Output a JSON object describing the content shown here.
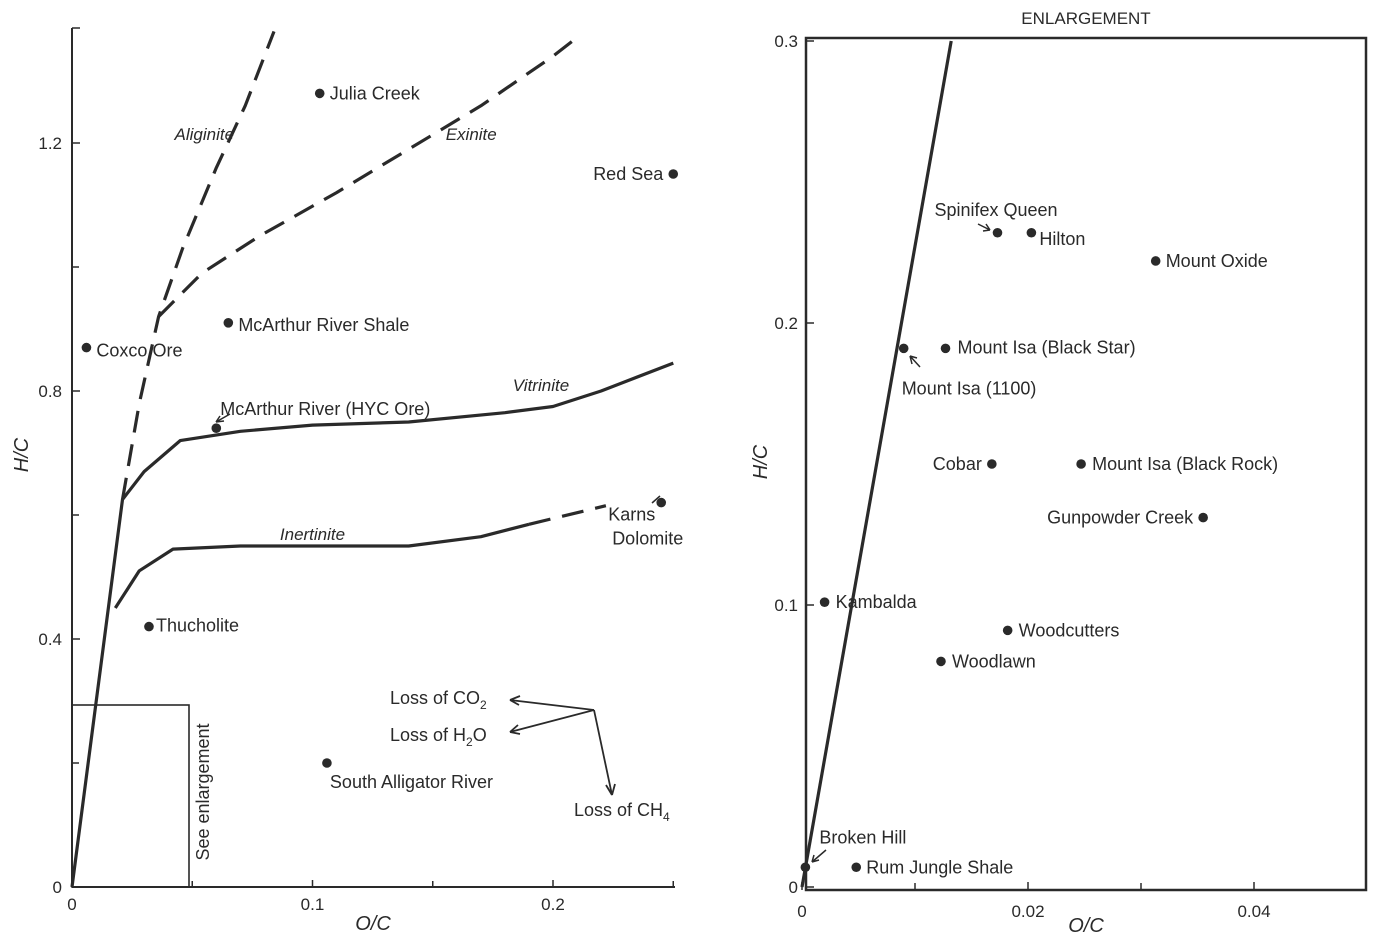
{
  "chart_data": [
    {
      "type": "scatter",
      "xlabel": "O/C",
      "ylabel": "H/C",
      "xlim": [
        0,
        0.25
      ],
      "ylim": [
        0,
        1.4
      ],
      "x_ticks": [
        {
          "value": 0,
          "label": "0"
        },
        {
          "value": 0.1,
          "label": "0.1"
        },
        {
          "value": 0.2,
          "label": "0.2"
        }
      ],
      "y_ticks": [
        {
          "value": 0,
          "label": "0"
        },
        {
          "value": 0.4,
          "label": "0.4"
        },
        {
          "value": 0.8,
          "label": "0.8"
        },
        {
          "value": 1.2,
          "label": "1.2"
        }
      ],
      "points": [
        {
          "label": "Julia Creek",
          "x": 0.103,
          "y": 1.28
        },
        {
          "label": "Red Sea",
          "x": 0.25,
          "y": 1.15
        },
        {
          "label": "McArthur River Shale",
          "x": 0.065,
          "y": 0.91
        },
        {
          "label": "Coxco Ore",
          "x": 0.006,
          "y": 0.87
        },
        {
          "label": "McArthur River (HYC Ore)",
          "x": 0.06,
          "y": 0.74
        },
        {
          "label": "Karns Dolomite",
          "x": 0.245,
          "y": 0.62
        },
        {
          "label": "Thucholite",
          "x": 0.032,
          "y": 0.42
        },
        {
          "label": "South Alligator River",
          "x": 0.106,
          "y": 0.2
        }
      ],
      "curves": [
        {
          "name": "Aliginite",
          "style": "dashed",
          "points": [
            [
              0.021,
              0.625
            ],
            [
              0.028,
              0.78
            ],
            [
              0.036,
              0.92
            ],
            [
              0.046,
              1.03
            ],
            [
              0.06,
              1.16
            ],
            [
              0.072,
              1.26
            ],
            [
              0.084,
              1.38
            ]
          ]
        },
        {
          "name": "Exinite",
          "style": "dashed",
          "points": [
            [
              0.036,
              0.92
            ],
            [
              0.054,
              0.99
            ],
            [
              0.078,
              1.05
            ],
            [
              0.11,
              1.12
            ],
            [
              0.14,
              1.19
            ],
            [
              0.17,
              1.26
            ],
            [
              0.2,
              1.34
            ],
            [
              0.21,
              1.37
            ]
          ]
        },
        {
          "name": "Vitrinite",
          "style": "solid",
          "points": [
            [
              0,
              0
            ],
            [
              0.021,
              0.625
            ],
            [
              0.03,
              0.67
            ],
            [
              0.045,
              0.72
            ],
            [
              0.07,
              0.735
            ],
            [
              0.1,
              0.745
            ],
            [
              0.14,
              0.75
            ],
            [
              0.18,
              0.765
            ],
            [
              0.2,
              0.775
            ],
            [
              0.22,
              0.8
            ],
            [
              0.25,
              0.845
            ]
          ]
        },
        {
          "name": "Inertinite",
          "style": "solid",
          "points": [
            [
              0.018,
              0.45
            ],
            [
              0.028,
              0.51
            ],
            [
              0.042,
              0.545
            ],
            [
              0.07,
              0.55
            ],
            [
              0.1,
              0.55
            ],
            [
              0.14,
              0.55
            ],
            [
              0.17,
              0.565
            ],
            [
              0.19,
              0.585
            ]
          ]
        },
        {
          "name": "Inertinite-extension",
          "style": "dashed",
          "points": [
            [
              0.19,
              0.585
            ],
            [
              0.222,
              0.615
            ]
          ]
        }
      ],
      "curve_labels": [
        {
          "text": "Aliginite",
          "x": 0.055,
          "y": 1.205
        },
        {
          "text": "Exinite",
          "x": 0.166,
          "y": 1.205
        },
        {
          "text": "Vitrinite",
          "x": 0.195,
          "y": 0.8
        },
        {
          "text": "Inertinite",
          "x": 0.1,
          "y": 0.56
        }
      ],
      "annotations": {
        "loss_co2": "Loss of CO",
        "loss_co2_sub": "2",
        "loss_h2o_pre": "Loss of H",
        "loss_h2o_sub": "2",
        "loss_h2o_post": "O",
        "loss_ch4": "Loss of CH",
        "loss_ch4_sub": "4",
        "see_enlargement": "See enlargement"
      }
    },
    {
      "type": "scatter",
      "title": "ENLARGEMENT",
      "xlabel": "O/C",
      "ylabel": "H/C",
      "xlim": [
        0,
        0.05
      ],
      "ylim": [
        0,
        0.3
      ],
      "x_ticks": [
        {
          "value": 0,
          "label": "0"
        },
        {
          "value": 0.02,
          "label": "0.02"
        },
        {
          "value": 0.04,
          "label": "0.04"
        }
      ],
      "y_ticks": [
        {
          "value": 0,
          "label": "0"
        },
        {
          "value": 0.1,
          "label": "0.1"
        },
        {
          "value": 0.2,
          "label": "0.2"
        },
        {
          "value": 0.3,
          "label": "0.3"
        }
      ],
      "points": [
        {
          "label": "Spinifex Queen",
          "x": 0.0173,
          "y": 0.232
        },
        {
          "label": "Hilton",
          "x": 0.0203,
          "y": 0.232
        },
        {
          "label": "Mount Oxide",
          "x": 0.0313,
          "y": 0.222
        },
        {
          "label": "Mount Isa (Black Star)",
          "x": 0.0127,
          "y": 0.191
        },
        {
          "label": "Mount Isa (1100)",
          "x": 0.009,
          "y": 0.191
        },
        {
          "label": "Cobar",
          "x": 0.0168,
          "y": 0.15
        },
        {
          "label": "Mount Isa (Black Rock)",
          "x": 0.0247,
          "y": 0.15
        },
        {
          "label": "Gunpowder Creek",
          "x": 0.0355,
          "y": 0.131
        },
        {
          "label": "Kambalda",
          "x": 0.002,
          "y": 0.101
        },
        {
          "label": "Woodcutters",
          "x": 0.0182,
          "y": 0.091
        },
        {
          "label": "Woodlawn",
          "x": 0.0123,
          "y": 0.08
        },
        {
          "label": "Broken Hill",
          "x": 0.0003,
          "y": 0.007
        },
        {
          "label": "Rum Jungle Shale",
          "x": 0.0048,
          "y": 0.007
        }
      ],
      "curves": [
        {
          "name": "Vitrinite",
          "style": "solid",
          "points": [
            [
              0,
              0
            ],
            [
              0.0132,
              0.3
            ]
          ]
        }
      ]
    }
  ]
}
